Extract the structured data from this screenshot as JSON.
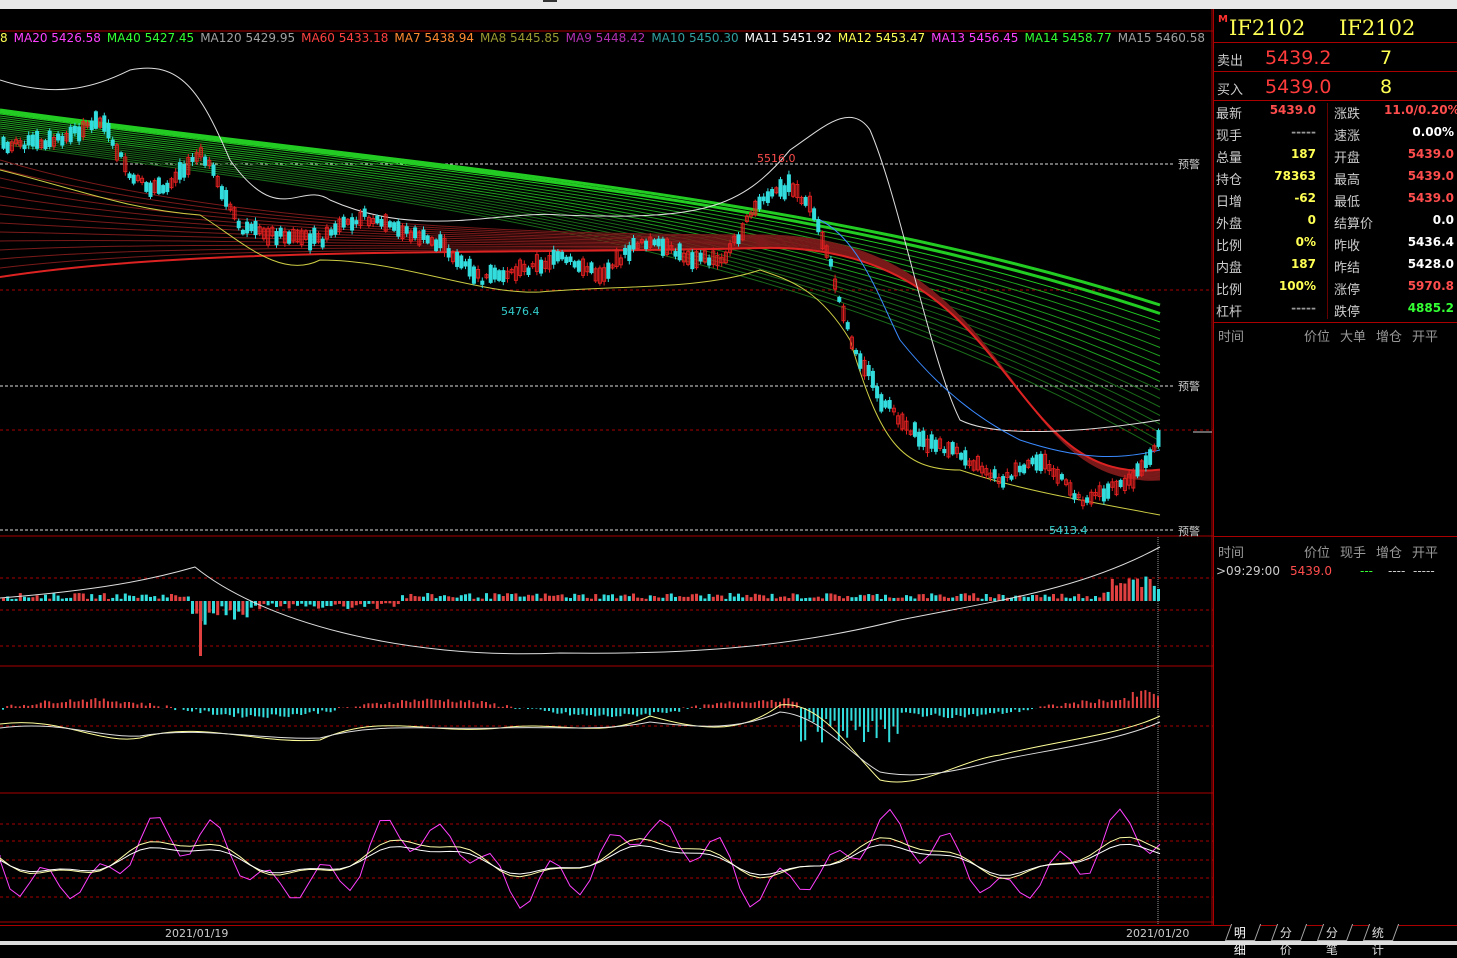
{
  "ma_legend": [
    {
      "text": "8",
      "color": "#ffff54"
    },
    {
      "text": "MA20 5426.58",
      "color": "#ff40ff"
    },
    {
      "text": "MA40 5427.45",
      "color": "#33ff33"
    },
    {
      "text": "MA120 5429.95",
      "color": "#a0a0a0"
    },
    {
      "text": "MA60 5433.18",
      "color": "#ff4040"
    },
    {
      "text": "MA7 5438.94",
      "color": "#ff8a30"
    },
    {
      "text": "MA8 5445.85",
      "color": "#9a9a30"
    },
    {
      "text": "MA9 5448.42",
      "color": "#b030b0"
    },
    {
      "text": "MA10 5450.30",
      "color": "#30a0a0"
    },
    {
      "text": "MA11 5451.92",
      "color": "#ffffff"
    },
    {
      "text": "MA12 5453.47",
      "color": "#ffff54"
    },
    {
      "text": "MA13 5456.45",
      "color": "#ff40ff"
    },
    {
      "text": "MA14 5458.77",
      "color": "#33ff33"
    },
    {
      "text": "MA15 5460.58",
      "color": "#a0a0a0"
    }
  ],
  "chart": {
    "annotations": {
      "high": "5516.0",
      "mid_low": "5476.4",
      "low": "5413.4"
    },
    "alert_label": "预警",
    "date_left": "2021/01/19",
    "date_right": "2021/01/20"
  },
  "quote": {
    "code_left": "IF2102",
    "code_right": "IF2102",
    "m_flag": "M",
    "ask_label": "卖出",
    "ask_price": "5439.2",
    "ask_qty": "7",
    "bid_label": "买入",
    "bid_price": "5439.0",
    "bid_qty": "8",
    "rows": [
      {
        "l1": "最新",
        "v1": "5439.0",
        "c1": "red",
        "l2": "涨跌",
        "v2": "11.0/0.20%",
        "c2": "red"
      },
      {
        "l1": "现手",
        "v1": "-----",
        "c1": "gry",
        "l2": "速涨",
        "v2": "0.00%",
        "c2": "wht"
      },
      {
        "l1": "总量",
        "v1": "187",
        "c1": "yel",
        "l2": "开盘",
        "v2": "5439.0",
        "c2": "red"
      },
      {
        "l1": "持仓",
        "v1": "78363",
        "c1": "yel",
        "l2": "最高",
        "v2": "5439.0",
        "c2": "red"
      },
      {
        "l1": "日增",
        "v1": "-62",
        "c1": "yel",
        "l2": "最低",
        "v2": "5439.0",
        "c2": "red"
      },
      {
        "l1": "外盘",
        "v1": "0",
        "c1": "yel",
        "l2": "结算价",
        "v2": "0.0",
        "c2": "wht"
      },
      {
        "l1": "比例",
        "v1": "0%",
        "c1": "yel",
        "l2": "昨收",
        "v2": "5436.4",
        "c2": "wht"
      },
      {
        "l1": "内盘",
        "v1": "187",
        "c1": "yel",
        "l2": "昨结",
        "v2": "5428.0",
        "c2": "wht"
      },
      {
        "l1": "比例",
        "v1": "100%",
        "c1": "yel",
        "l2": "涨停",
        "v2": "5970.8",
        "c2": "red"
      },
      {
        "l1": "杠杆",
        "v1": "-----",
        "c1": "gry",
        "l2": "跌停",
        "v2": "4885.2",
        "c2": "grn"
      }
    ],
    "table1_headers": [
      "时间",
      "价位",
      "大单",
      "增仓",
      "开平"
    ],
    "table2_headers": [
      "时间",
      "价位",
      "现手",
      "增仓",
      "开平"
    ],
    "tick": {
      "time": ">09:29:00",
      "price": "5439.0",
      "qty": "---",
      "oi": "----",
      "oc": "-----"
    }
  },
  "tabs": [
    "明细",
    "分价",
    "分笔",
    "统计"
  ]
}
